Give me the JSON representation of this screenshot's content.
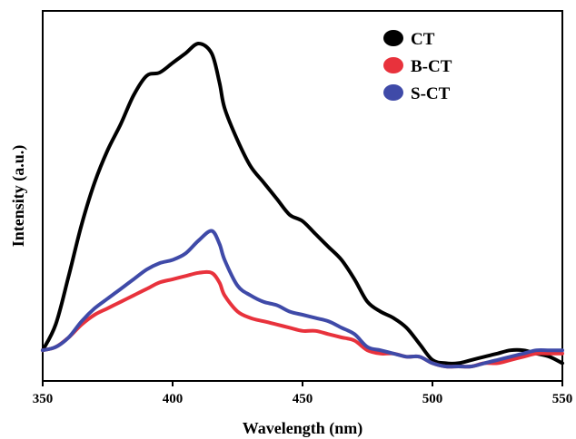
{
  "chart_data": {
    "type": "line",
    "title": "",
    "xlabel": "Wavelength (nm)",
    "ylabel": "Intensity (a.u.)",
    "xlim": [
      350,
      550
    ],
    "ylim": [
      0,
      1
    ],
    "xticks": [
      350,
      400,
      450,
      500,
      550
    ],
    "yticks_shown": false,
    "grid": false,
    "legend_position": "top-right",
    "series": [
      {
        "name": "CT",
        "color": "#000000",
        "x": [
          350,
          355,
          360,
          365,
          370,
          375,
          380,
          385,
          390,
          395,
          400,
          405,
          410,
          415,
          418,
          420,
          425,
          430,
          435,
          440,
          445,
          450,
          455,
          460,
          465,
          470,
          475,
          480,
          485,
          490,
          495,
          500,
          505,
          510,
          515,
          520,
          525,
          530,
          535,
          540,
          545,
          550
        ],
        "y": [
          0.05,
          0.13,
          0.28,
          0.44,
          0.57,
          0.67,
          0.75,
          0.84,
          0.9,
          0.91,
          0.94,
          0.97,
          1.0,
          0.97,
          0.88,
          0.8,
          0.7,
          0.62,
          0.57,
          0.52,
          0.47,
          0.45,
          0.41,
          0.37,
          0.33,
          0.27,
          0.2,
          0.17,
          0.15,
          0.12,
          0.07,
          0.02,
          0.01,
          0.01,
          0.02,
          0.03,
          0.04,
          0.05,
          0.05,
          0.04,
          0.03,
          0.01
        ]
      },
      {
        "name": "B-CT",
        "color": "#e8323c",
        "x": [
          350,
          355,
          360,
          365,
          370,
          375,
          380,
          385,
          390,
          395,
          400,
          405,
          410,
          415,
          418,
          420,
          425,
          430,
          435,
          440,
          445,
          450,
          455,
          460,
          465,
          470,
          475,
          480,
          485,
          490,
          495,
          500,
          505,
          510,
          515,
          520,
          525,
          530,
          535,
          540,
          545,
          550
        ],
        "y": [
          0.05,
          0.06,
          0.09,
          0.13,
          0.16,
          0.18,
          0.2,
          0.22,
          0.24,
          0.26,
          0.27,
          0.28,
          0.29,
          0.29,
          0.26,
          0.22,
          0.17,
          0.15,
          0.14,
          0.13,
          0.12,
          0.11,
          0.11,
          0.1,
          0.09,
          0.08,
          0.05,
          0.04,
          0.04,
          0.03,
          0.03,
          0.01,
          0.0,
          0.0,
          0.0,
          0.01,
          0.01,
          0.02,
          0.03,
          0.04,
          0.04,
          0.04
        ]
      },
      {
        "name": "S-CT",
        "color": "#3f4aa8",
        "x": [
          350,
          355,
          360,
          365,
          370,
          375,
          380,
          385,
          390,
          395,
          400,
          405,
          410,
          415,
          418,
          420,
          425,
          430,
          435,
          440,
          445,
          450,
          455,
          460,
          465,
          470,
          475,
          480,
          485,
          490,
          495,
          500,
          505,
          510,
          515,
          520,
          525,
          530,
          535,
          540,
          545,
          550
        ],
        "y": [
          0.05,
          0.06,
          0.09,
          0.14,
          0.18,
          0.21,
          0.24,
          0.27,
          0.3,
          0.32,
          0.33,
          0.35,
          0.39,
          0.42,
          0.38,
          0.33,
          0.25,
          0.22,
          0.2,
          0.19,
          0.17,
          0.16,
          0.15,
          0.14,
          0.12,
          0.1,
          0.06,
          0.05,
          0.04,
          0.03,
          0.03,
          0.01,
          0.0,
          0.0,
          0.0,
          0.01,
          0.02,
          0.03,
          0.04,
          0.05,
          0.05,
          0.05
        ]
      }
    ]
  }
}
